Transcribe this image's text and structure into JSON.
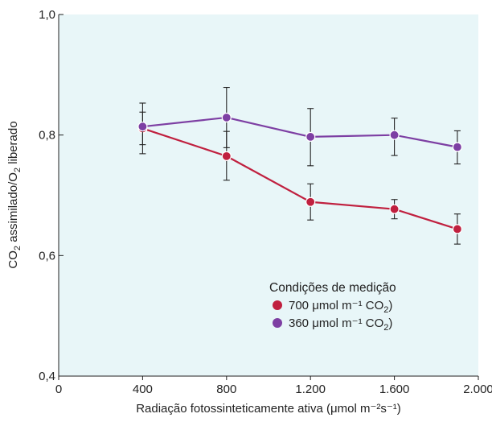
{
  "chart_data": {
    "type": "line",
    "title": "",
    "xlabel": "Radiação fotossinteticamente ativa (μmol m⁻²s⁻¹)",
    "ylabel_parts": [
      "CO",
      "2",
      " assimilado/O",
      "2",
      " liberado"
    ],
    "xlim": [
      0,
      2000
    ],
    "ylim": [
      0.4,
      1.0
    ],
    "x_ticks": [
      0,
      400,
      800,
      1200,
      1600,
      2000
    ],
    "x_tick_labels": [
      "0",
      "400",
      "800",
      "1.200",
      "1.600",
      "2.000"
    ],
    "y_ticks": [
      0.4,
      0.6,
      0.8,
      1.0
    ],
    "y_tick_labels": [
      "0,4",
      "0,6",
      "0,8",
      "1,0"
    ],
    "background_color": "#e8f6f8",
    "grid": false,
    "legend": {
      "title": "Condições de medição",
      "placement": "lower-right",
      "entries": [
        {
          "prefix": "700 μmol m⁻¹ CO",
          "sub": "2",
          "suffix": ")"
        },
        {
          "prefix": "360 μmol m⁻¹ CO",
          "sub": "2",
          "suffix": ")"
        }
      ]
    },
    "series": [
      {
        "color": "#c0203f",
        "x": [
          400,
          800,
          1200,
          1600,
          1900
        ],
        "y": [
          0.811,
          0.765,
          0.689,
          0.677,
          0.644
        ],
        "err_low": [
          0.784,
          0.725,
          0.659,
          0.661,
          0.619
        ],
        "err_high": [
          0.838,
          0.806,
          0.719,
          0.693,
          0.669
        ]
      },
      {
        "color": "#7d3fa3",
        "x": [
          400,
          800,
          1200,
          1600,
          1900
        ],
        "y": [
          0.814,
          0.829,
          0.797,
          0.8,
          0.78
        ],
        "err_low": [
          0.769,
          0.779,
          0.749,
          0.766,
          0.752
        ],
        "err_high": [
          0.853,
          0.879,
          0.844,
          0.828,
          0.807
        ]
      }
    ]
  }
}
